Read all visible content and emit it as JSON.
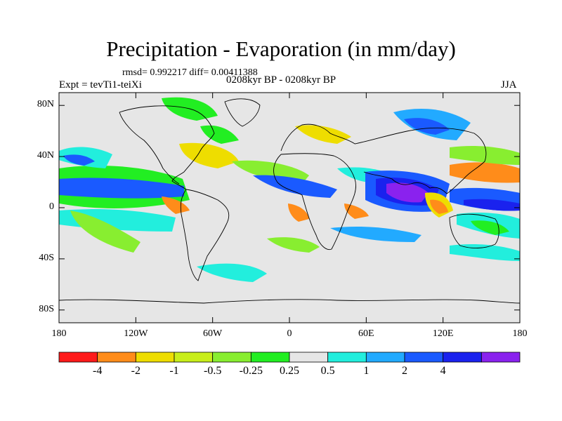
{
  "title": "Precipitation - Evaporation (in mm/day)",
  "stats": "rmsd= 0.992217 diff= 0.00411388",
  "period": "0208kyr BP - 0208kyr BP",
  "experiment": "Expt = tevTi1-teiXi",
  "season": "JJA",
  "lat_ticks": [
    {
      "label": "80N",
      "lat": 80
    },
    {
      "label": "40N",
      "lat": 40
    },
    {
      "label": "0",
      "lat": 0
    },
    {
      "label": "40S",
      "lat": -40
    },
    {
      "label": "80S",
      "lat": -80
    }
  ],
  "lon_ticks": [
    {
      "label": "180",
      "lon": -180
    },
    {
      "label": "120W",
      "lon": -120
    },
    {
      "label": "60W",
      "lon": -60
    },
    {
      "label": "0",
      "lon": 0
    },
    {
      "label": "60E",
      "lon": 60
    },
    {
      "label": "120E",
      "lon": 120
    },
    {
      "label": "180",
      "lon": 180
    }
  ],
  "colorbar": {
    "colors": [
      "#ff1a1a",
      "#ff8c1a",
      "#eedd00",
      "#c8ee1a",
      "#88ee30",
      "#22ee22",
      "#e6e6e6",
      "#22eedd",
      "#22aaff",
      "#1a5aff",
      "#1a22ee",
      "#8a22ee"
    ],
    "labels": [
      "-4",
      "-2",
      "-1",
      "-0.5",
      "-0.25",
      "0.25",
      "0.5",
      "1",
      "2",
      "4"
    ]
  },
  "colors": {
    "land_outline": "#000000",
    "background_field": "#e6e6e6"
  }
}
